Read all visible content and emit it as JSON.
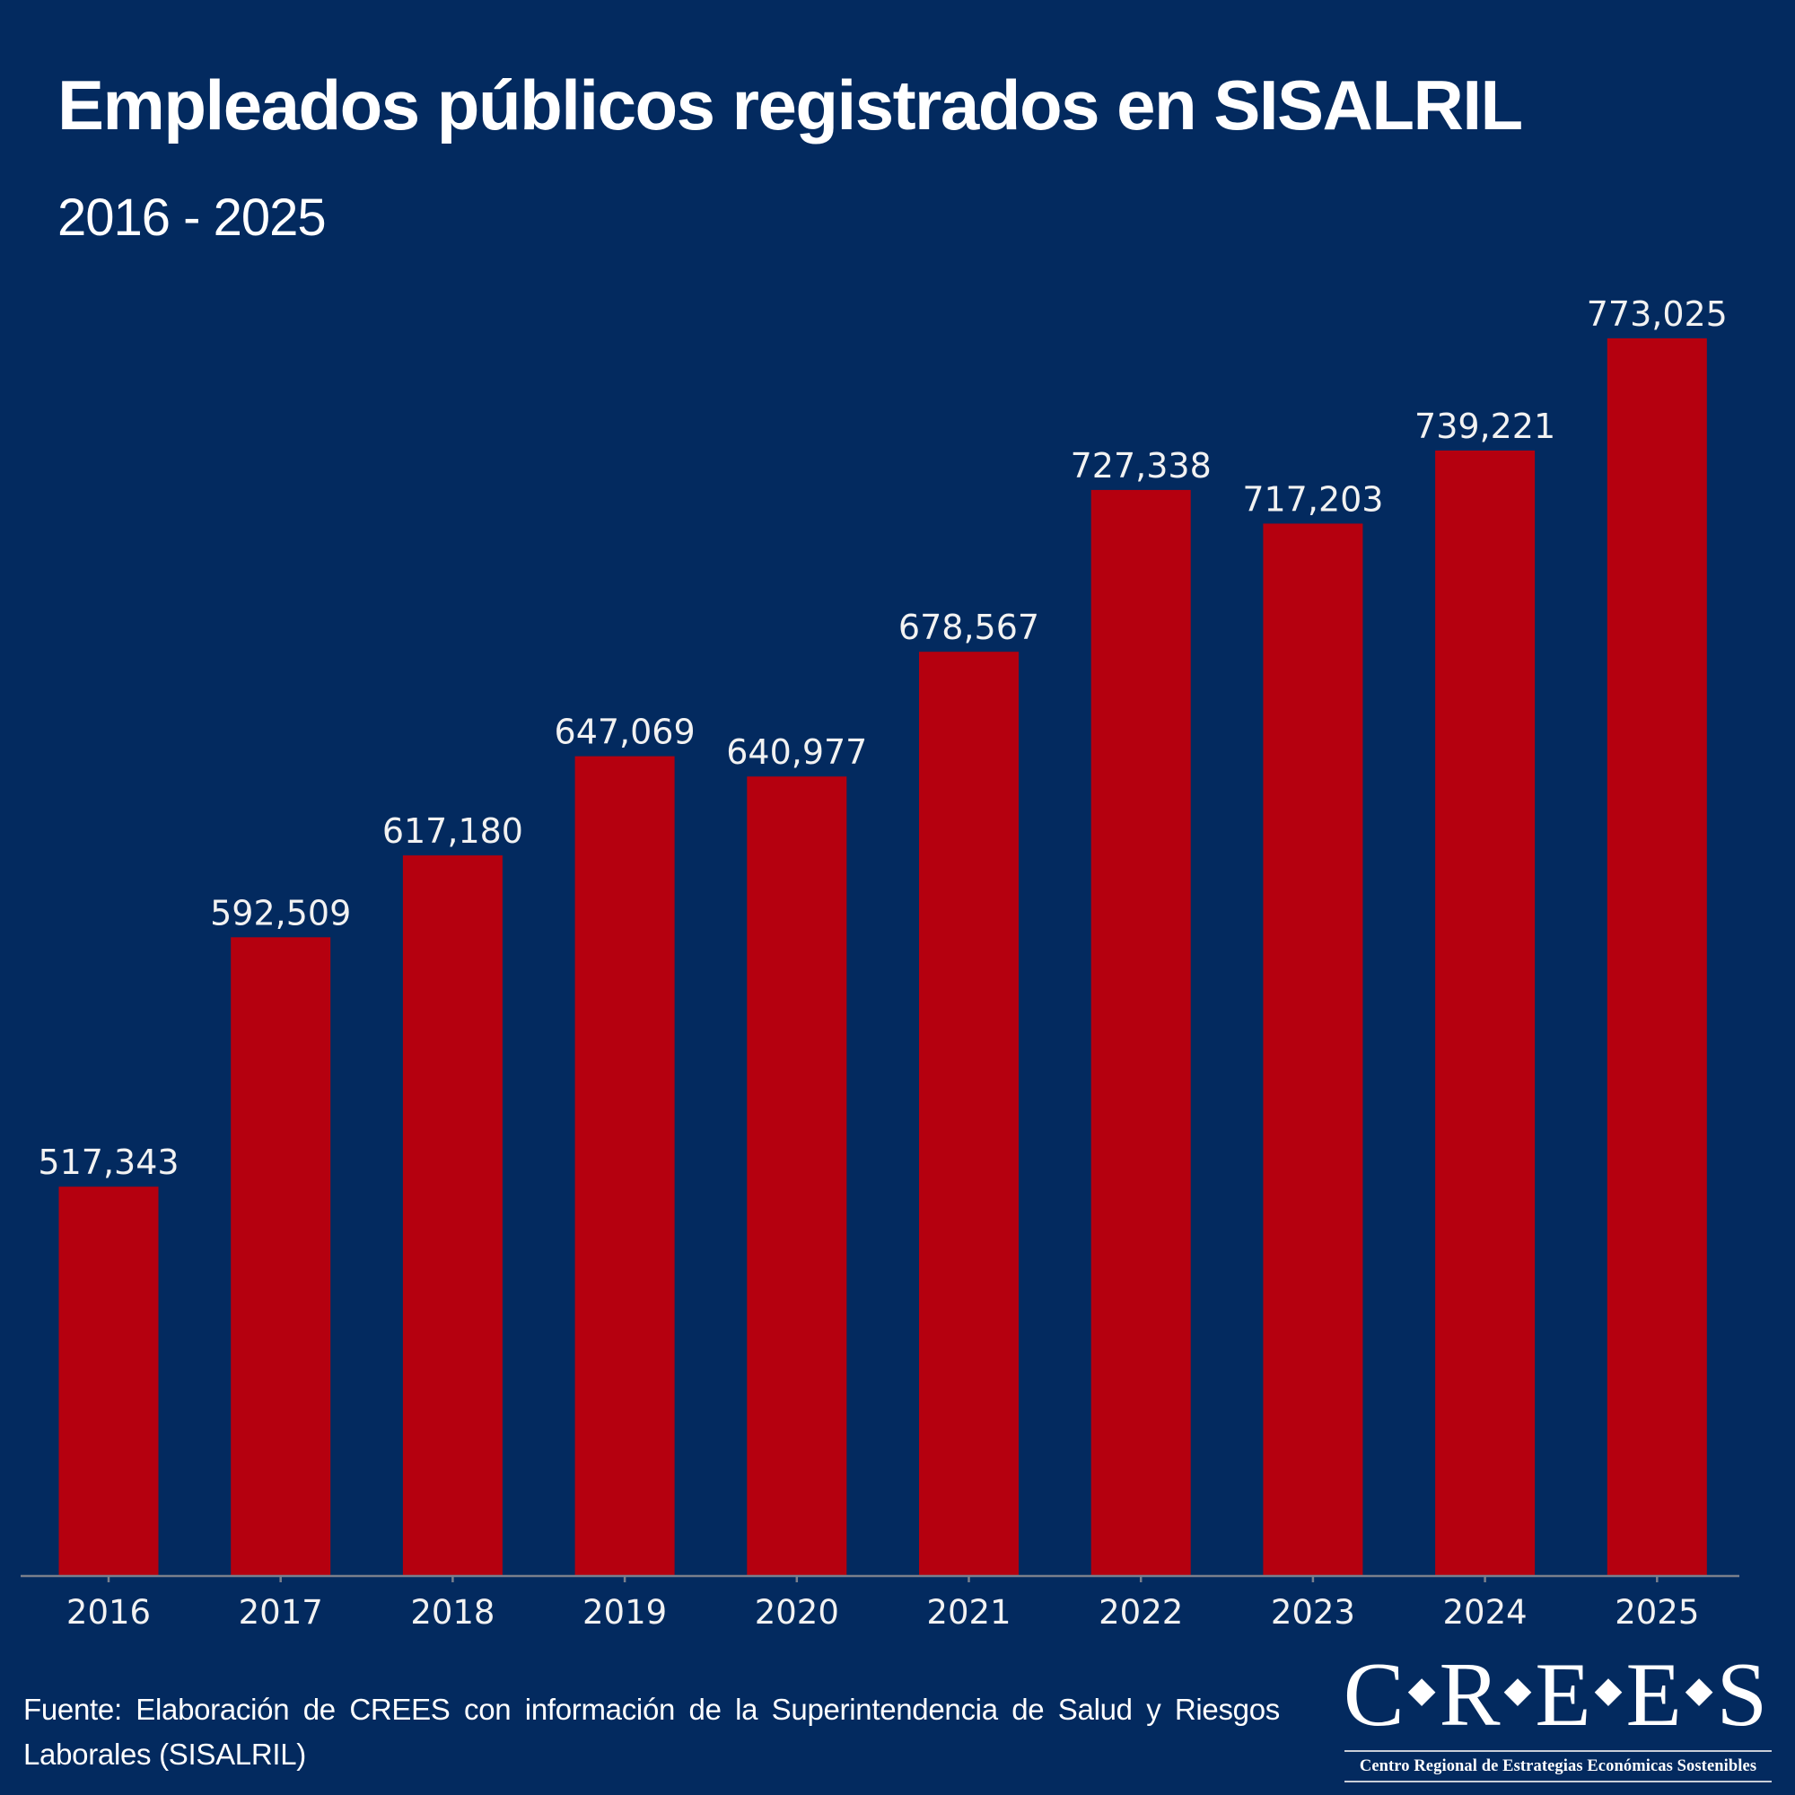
{
  "header": {
    "title": "Empleados públicos registrados en SISALRIL",
    "subtitle": "2016 - 2025"
  },
  "colors": {
    "background": "#032a5f",
    "bar": "#b5000f",
    "text": "#ffffff",
    "axis": "#7a7f8c"
  },
  "chart_data": {
    "type": "bar",
    "title": "Empleados públicos registrados en SISALRIL",
    "subtitle": "2016 - 2025",
    "xlabel": "",
    "ylabel": "",
    "categories": [
      "2016",
      "2017",
      "2018",
      "2019",
      "2020",
      "2021",
      "2022",
      "2023",
      "2024",
      "2025"
    ],
    "values": [
      517343,
      592509,
      617180,
      647069,
      640977,
      678567,
      727338,
      717203,
      739221,
      773025
    ],
    "value_labels": [
      "517,343",
      "592,509",
      "617,180",
      "647,069",
      "640,977",
      "678,567",
      "727,338",
      "717,203",
      "739,221",
      "773,025"
    ],
    "ylim": [
      400000,
      775000
    ],
    "grid": false,
    "legend": "none",
    "y_axis_visible": false
  },
  "footer": {
    "source": "Fuente: Elaboración de CREES con información de la Superintendencia de Salud y Riesgos Laborales (SISALRIL)",
    "logo_letters": [
      "C",
      "R",
      "E",
      "E",
      "S"
    ],
    "logo_tagline": "Centro Regional de Estrategias Económicas Sostenibles"
  }
}
